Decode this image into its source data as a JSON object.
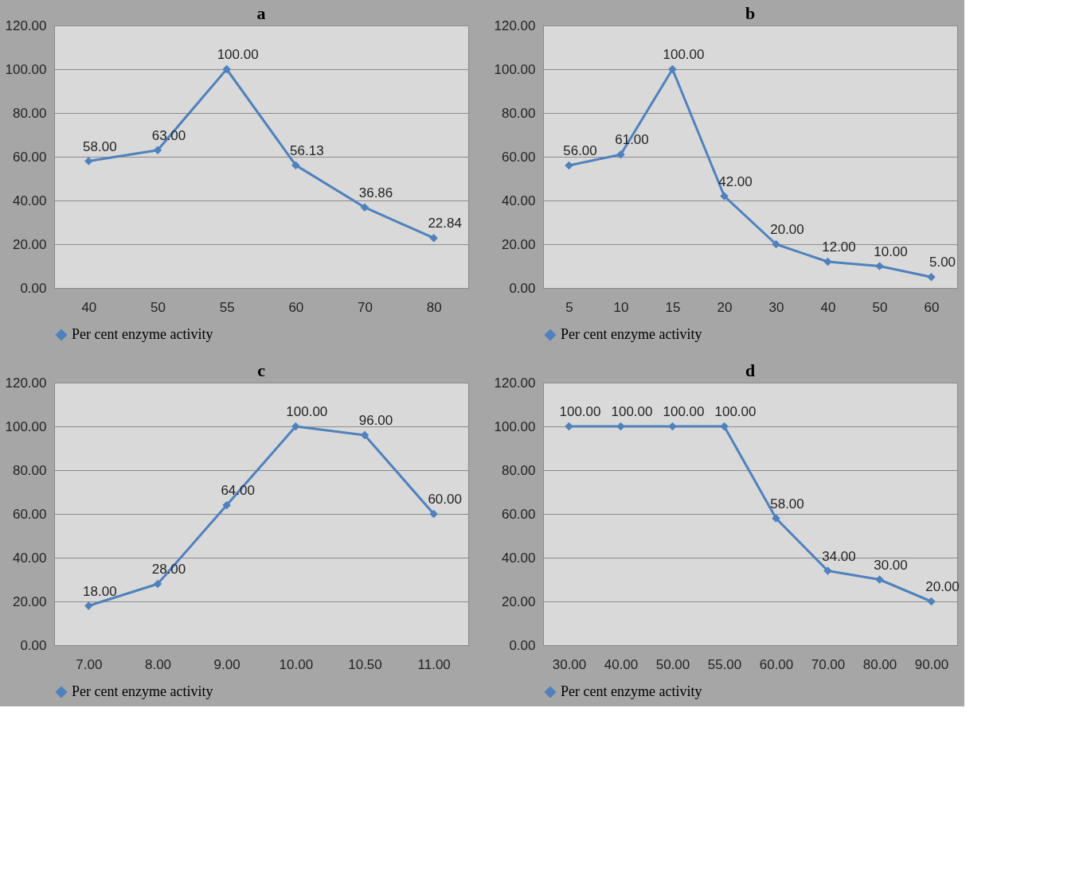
{
  "chart_data": [
    {
      "type": "line",
      "title": "a",
      "categories": [
        "40",
        "50",
        "55",
        "60",
        "70",
        "80"
      ],
      "series": [
        {
          "name": "Per cent enzyme activity",
          "color": "#4f81bd",
          "values": [
            58,
            63,
            100,
            56.13,
            36.86,
            22.84
          ],
          "value_labels": [
            "58.00",
            "63.00",
            "100.00",
            "56.13",
            "36.86",
            "22.84"
          ]
        }
      ],
      "ylim": [
        0,
        120
      ],
      "yticks": [
        {
          "value": 0,
          "label": "0.00"
        },
        {
          "value": 20,
          "label": "20.00"
        },
        {
          "value": 40,
          "label": "40.00"
        },
        {
          "value": 60,
          "label": "60.00"
        },
        {
          "value": 80,
          "label": "80.00"
        },
        {
          "value": 100,
          "label": "100.00"
        },
        {
          "value": 120,
          "label": "120.00"
        }
      ],
      "grid": "y",
      "legend": "bottom",
      "marker": "diamond",
      "line_style": "solid"
    },
    {
      "type": "line",
      "title": "b",
      "categories": [
        "5",
        "10",
        "15",
        "20",
        "30",
        "40",
        "50",
        "60"
      ],
      "series": [
        {
          "name": "Per cent enzyme activity",
          "color": "#4f81bd",
          "values": [
            56,
            61,
            100,
            42,
            20,
            12,
            10,
            5
          ],
          "value_labels": [
            "56.00",
            "61.00",
            "100.00",
            "42.00",
            "20.00",
            "12.00",
            "10.00",
            "5.00"
          ]
        }
      ],
      "ylim": [
        0,
        120
      ],
      "yticks": [
        {
          "value": 0,
          "label": "0.00"
        },
        {
          "value": 20,
          "label": "20.00"
        },
        {
          "value": 40,
          "label": "40.00"
        },
        {
          "value": 60,
          "label": "60.00"
        },
        {
          "value": 80,
          "label": "80.00"
        },
        {
          "value": 100,
          "label": "100.00"
        },
        {
          "value": 120,
          "label": "120.00"
        }
      ],
      "grid": "y",
      "legend": "bottom",
      "marker": "diamond",
      "line_style": "solid"
    },
    {
      "type": "line",
      "title": "c",
      "categories": [
        "7.00",
        "8.00",
        "9.00",
        "10.00",
        "10.50",
        "11.00"
      ],
      "series": [
        {
          "name": "Per cent enzyme activity",
          "color": "#4f81bd",
          "values": [
            18,
            28,
            64,
            100,
            96,
            60
          ],
          "value_labels": [
            "18.00",
            "28.00",
            "64.00",
            "100.00",
            "96.00",
            "60.00"
          ]
        }
      ],
      "ylim": [
        0,
        120
      ],
      "yticks": [
        {
          "value": 0,
          "label": "0.00"
        },
        {
          "value": 20,
          "label": "20.00"
        },
        {
          "value": 40,
          "label": "40.00"
        },
        {
          "value": 60,
          "label": "60.00"
        },
        {
          "value": 80,
          "label": "80.00"
        },
        {
          "value": 100,
          "label": "100.00"
        },
        {
          "value": 120,
          "label": "120.00"
        }
      ],
      "grid": "y",
      "legend": "bottom",
      "marker": "diamond",
      "line_style": "solid"
    },
    {
      "type": "line",
      "title": "d",
      "categories": [
        "30.00",
        "40.00",
        "50.00",
        "55.00",
        "60.00",
        "70.00",
        "80.00",
        "90.00"
      ],
      "series": [
        {
          "name": "Per cent enzyme activity",
          "color": "#4f81bd",
          "values": [
            100,
            100,
            100,
            100,
            58,
            34,
            30,
            20
          ],
          "value_labels": [
            "100.00",
            "100.00",
            "100.00",
            "100.00",
            "58.00",
            "34.00",
            "30.00",
            "20.00"
          ]
        }
      ],
      "ylim": [
        0,
        120
      ],
      "yticks": [
        {
          "value": 0,
          "label": "0.00"
        },
        {
          "value": 20,
          "label": "20.00"
        },
        {
          "value": 40,
          "label": "40.00"
        },
        {
          "value": 60,
          "label": "60.00"
        },
        {
          "value": 80,
          "label": "80.00"
        },
        {
          "value": 100,
          "label": "100.00"
        },
        {
          "value": 120,
          "label": "120.00"
        }
      ],
      "grid": "y",
      "legend": "bottom",
      "marker": "diamond",
      "line_style": "solid"
    }
  ]
}
